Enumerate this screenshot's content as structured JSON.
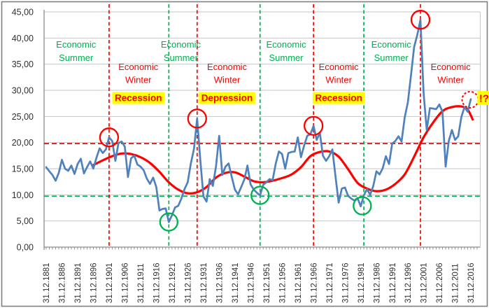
{
  "chart_data": {
    "type": "line",
    "title": "",
    "xlabel": "",
    "ylabel": "",
    "ylim": [
      0,
      45
    ],
    "grid": "horizontal",
    "legend_position": "none",
    "yticks": {
      "values": [
        45,
        40,
        35,
        30,
        25,
        20,
        15,
        10,
        5,
        0
      ],
      "labels": [
        "45,00",
        "40,00",
        "35,00",
        "30,00",
        "25,00",
        "20,00",
        "15,00",
        "10,00",
        "5,00",
        "0,00"
      ]
    },
    "xticks": {
      "years": [
        1881,
        1886,
        1891,
        1896,
        1901,
        1906,
        1911,
        1916,
        1921,
        1926,
        1931,
        1936,
        1941,
        1946,
        1951,
        1956,
        1961,
        1966,
        1971,
        1976,
        1981,
        1986,
        1991,
        1996,
        2001,
        2006,
        2011,
        2016
      ],
      "labels": [
        "31.12.1881",
        "31.12.1886",
        "31.12.1891",
        "31.12.1896",
        "31.12.1901",
        "31.12.1906",
        "31.12.1911",
        "31.12.1916",
        "31.12.1921",
        "31.12.1926",
        "31.12.1931",
        "31.12.1936",
        "31.12.1941",
        "31.12.1946",
        "31.12.1951",
        "31.12.1956",
        "31.12.1961",
        "31.12.1966",
        "31.12.1971",
        "31.12.1976",
        "31.12.1981",
        "31.12.1986",
        "31.12.1991",
        "31.12.1996",
        "31.12.2001",
        "31.12.2006",
        "31.12.2011",
        "31.12.2016"
      ]
    },
    "series": [
      {
        "id": "main_line",
        "color": "#4f81bd",
        "start_year": 1881,
        "values": [
          15.3,
          14.5,
          13.8,
          12.7,
          14.2,
          16.7,
          15.0,
          14.6,
          15.6,
          14.0,
          15.9,
          16.9,
          14.1,
          15.3,
          16.4,
          15.0,
          17.1,
          18.9,
          18.0,
          18.7,
          21.0,
          20.3,
          16.5,
          19.9,
          20.2,
          19.2,
          13.4,
          17.0,
          17.5,
          15.8,
          15.4,
          14.7,
          13.1,
          12.1,
          13.3,
          11.5,
          7.0,
          7.3,
          7.4,
          4.8,
          6.1,
          7.6,
          7.9,
          9.3,
          11.1,
          12.4,
          16.0,
          18.8,
          24.6,
          16.7,
          9.7,
          8.7,
          13.0,
          11.7,
          15.5,
          21.3,
          13.8,
          15.4,
          16.0,
          13.4,
          11.0,
          10.1,
          11.5,
          12.9,
          15.6,
          12.0,
          11.0,
          10.4,
          9.9,
          11.9,
          12.4,
          13.0,
          12.8,
          16.0,
          18.3,
          17.8,
          15.0,
          18.0,
          18.2,
          18.3,
          21.0,
          17.2,
          19.4,
          21.3,
          21.6,
          23.2,
          20.5,
          21.9,
          17.5,
          16.5,
          17.4,
          18.7,
          13.5,
          8.5,
          11.2,
          11.4,
          9.8,
          9.3,
          8.9,
          9.4,
          7.8,
          9.9,
          11.1,
          10.0,
          11.7,
          14.5,
          13.9,
          15.1,
          17.4,
          15.9,
          19.8,
          20.3,
          21.2,
          20.2,
          24.8,
          27.7,
          32.9,
          38.3,
          40.6,
          43.5,
          29.5,
          22.4,
          26.6,
          26.5,
          26.4,
          27.3,
          25.9,
          15.4,
          20.3,
          22.4,
          20.5,
          21.2,
          24.9,
          26.8,
          25.9,
          28.3
        ]
      },
      {
        "id": "smoothed_line",
        "color": "#ff0000",
        "points": [
          [
            1896,
            15.7
          ],
          [
            1899,
            16.6
          ],
          [
            1902,
            17.4
          ],
          [
            1905,
            17.9
          ],
          [
            1908,
            17.8
          ],
          [
            1911,
            17.2
          ],
          [
            1914,
            16.1
          ],
          [
            1917,
            14.4
          ],
          [
            1920,
            12.4
          ],
          [
            1923,
            11.0
          ],
          [
            1926,
            10.3
          ],
          [
            1929,
            10.5
          ],
          [
            1932,
            11.5
          ],
          [
            1935,
            13.3
          ],
          [
            1938,
            14.2
          ],
          [
            1941,
            14.3
          ],
          [
            1944,
            13.5
          ],
          [
            1947,
            12.6
          ],
          [
            1950,
            12.4
          ],
          [
            1953,
            12.7
          ],
          [
            1956,
            13.2
          ],
          [
            1959,
            13.9
          ],
          [
            1962,
            15.3
          ],
          [
            1965,
            17.4
          ],
          [
            1968,
            18.2
          ],
          [
            1971,
            18.3
          ],
          [
            1974,
            17.3
          ],
          [
            1977,
            14.9
          ],
          [
            1980,
            12.3
          ],
          [
            1983,
            11.2
          ],
          [
            1986,
            10.7
          ],
          [
            1989,
            11.0
          ],
          [
            1992,
            12.1
          ],
          [
            1995,
            13.9
          ],
          [
            1998,
            17.3
          ],
          [
            2001,
            21.0
          ],
          [
            2004,
            23.8
          ],
          [
            2007,
            26.0
          ],
          [
            2010,
            26.8
          ],
          [
            2013,
            26.9
          ],
          [
            2015,
            26.3
          ],
          [
            2016.6,
            24.4
          ]
        ]
      }
    ],
    "reference_lines": {
      "horizontal": [
        {
          "value": 19.8,
          "season": "winter"
        },
        {
          "value": 9.75,
          "season": "summer"
        }
      ],
      "vertical": [
        {
          "year": 1901,
          "season": "winter"
        },
        {
          "year": 1920,
          "season": "summer"
        },
        {
          "year": 1929,
          "season": "winter"
        },
        {
          "year": 1949,
          "season": "summer"
        },
        {
          "year": 1966,
          "season": "winter"
        },
        {
          "year": 1982,
          "season": "summer"
        },
        {
          "year": 2000,
          "season": "winter"
        }
      ]
    },
    "markers": [
      {
        "year": 1901,
        "value": 21.0,
        "season": "winter",
        "style": "solid"
      },
      {
        "year": 1920,
        "value": 4.8,
        "season": "summer",
        "style": "solid"
      },
      {
        "year": 1929,
        "value": 24.6,
        "season": "winter",
        "style": "solid"
      },
      {
        "year": 1949,
        "value": 9.9,
        "season": "summer",
        "style": "solid"
      },
      {
        "year": 1966,
        "value": 23.2,
        "season": "winter",
        "style": "solid"
      },
      {
        "year": 1981.5,
        "value": 7.9,
        "season": "summer",
        "style": "solid"
      },
      {
        "year": 2000,
        "value": 43.5,
        "season": "winter",
        "style": "solid"
      },
      {
        "year": 2015.8,
        "value": 28.2,
        "season": "winter",
        "style": "dashed"
      }
    ],
    "zone_labels": [
      {
        "lines": [
          "Economic",
          "Summer"
        ],
        "season": "summer",
        "center_year": 1890.5
      },
      {
        "lines": [
          "Economic",
          "Winter"
        ],
        "season": "winter",
        "center_year": 1910.3
      },
      {
        "lines": [
          "Economic",
          "Summer"
        ],
        "season": "summer",
        "center_year": 1923.8
      },
      {
        "lines": [
          "Economic",
          "Winter"
        ],
        "season": "winter",
        "center_year": 1938.5
      },
      {
        "lines": [
          "Economic",
          "Summer"
        ],
        "season": "summer",
        "center_year": 1957.3
      },
      {
        "lines": [
          "Economic",
          "Winter"
        ],
        "season": "winter",
        "center_year": 1974.0
      },
      {
        "lines": [
          "Economic",
          "Summer"
        ],
        "season": "summer",
        "center_year": 1990.7
      },
      {
        "lines": [
          "Economic",
          "Winter"
        ],
        "season": "winter",
        "center_year": 2009.6
      }
    ],
    "badges": [
      {
        "text": "Recession",
        "center_year": 1910.3
      },
      {
        "text": "Depression",
        "center_year": 1938.5
      },
      {
        "text": "Recession",
        "center_year": 1974.0
      }
    ],
    "alert": {
      "text": "!?"
    },
    "colors": {
      "summer_green": "#00b050",
      "winter_red": "#ff0000",
      "highlight_yellow": "#ffff00",
      "gridline": "#c6c6c6",
      "axis": "#8c8c8c",
      "tick_text": "#303030",
      "border": "#7f7f7f"
    }
  }
}
